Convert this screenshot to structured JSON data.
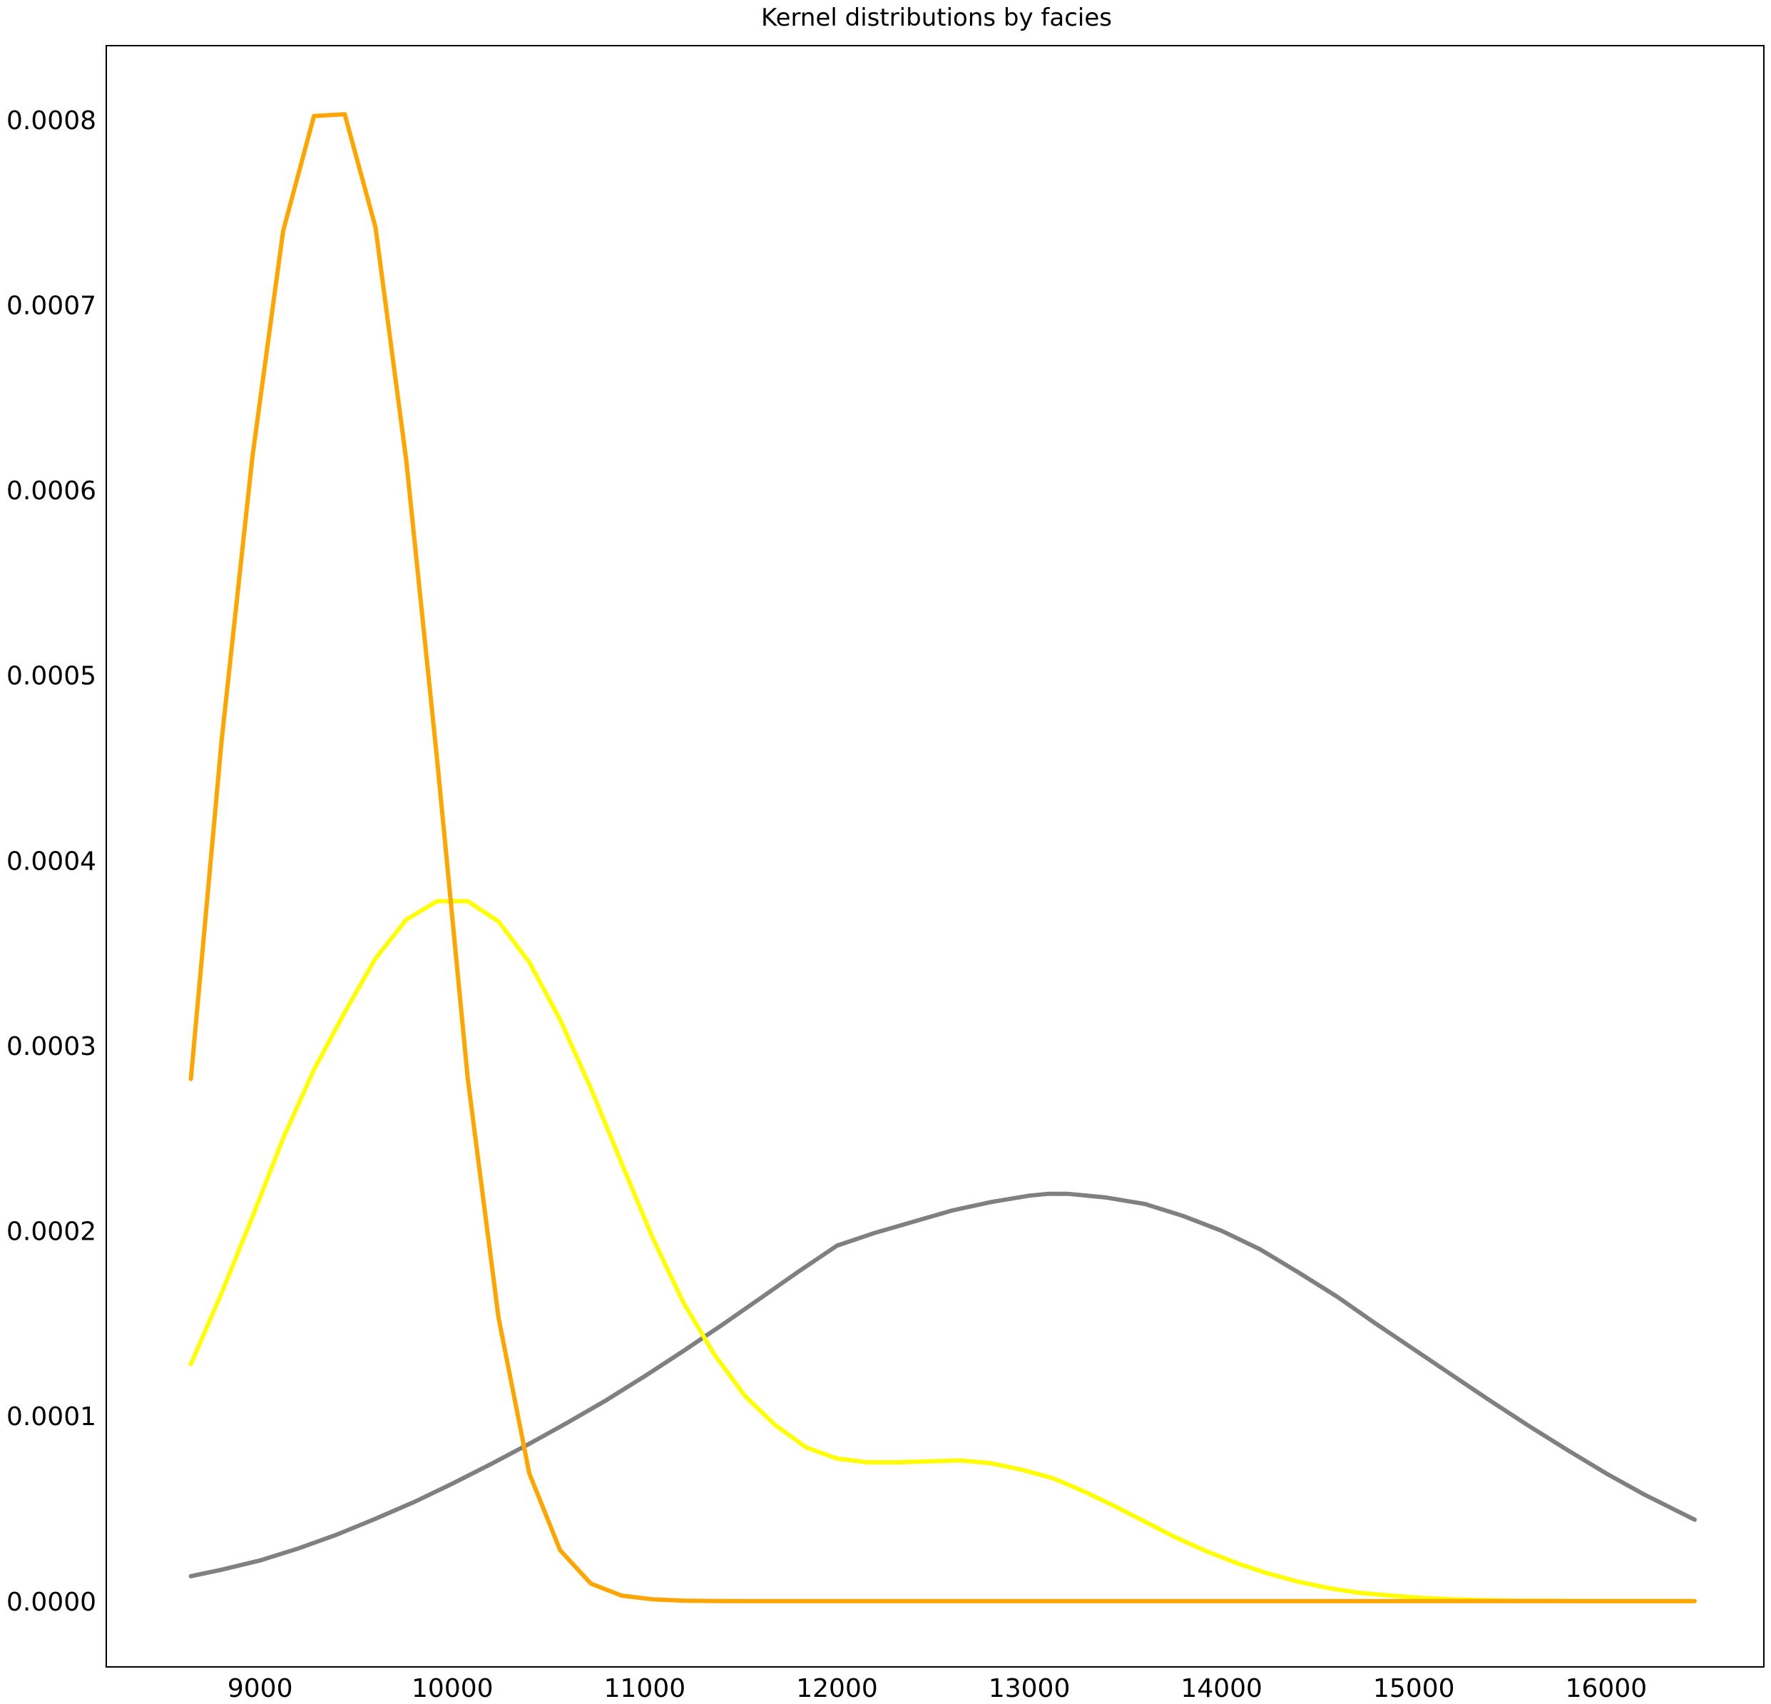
{
  "chart_data": {
    "type": "line",
    "title": "Kernel distributions by facies",
    "xlabel": "",
    "ylabel": "",
    "xlim": [
      8200,
      16820
    ],
    "ylim": [
      -3.55e-05,
      0.00084
    ],
    "grid": false,
    "legend": "none",
    "x_ticks": [
      9000,
      10000,
      11000,
      12000,
      13000,
      14000,
      15000,
      16000
    ],
    "x_tick_labels": [
      "9000",
      "10000",
      "11000",
      "12000",
      "13000",
      "14000",
      "15000",
      "16000"
    ],
    "y_ticks": [
      0.0,
      0.0001,
      0.0002,
      0.0003,
      0.0004,
      0.0005,
      0.0006,
      0.0007,
      0.0008
    ],
    "y_tick_labels": [
      "0.0000",
      "0.0001",
      "0.0002",
      "0.0003",
      "0.0004",
      "0.0005",
      "0.0006",
      "0.0007",
      "0.0008"
    ],
    "series": [
      {
        "color": "#808080",
        "x": [
          8640,
          8800,
          9000,
          9200,
          9400,
          9600,
          9800,
          10000,
          10200,
          10400,
          10600,
          10800,
          11000,
          11200,
          11400,
          11600,
          11800,
          12000,
          12200,
          12400,
          12600,
          12800,
          13000,
          13100,
          13200,
          13400,
          13600,
          13800,
          14000,
          14200,
          14400,
          14600,
          14800,
          15000,
          15200,
          15400,
          15600,
          15800,
          16000,
          16200,
          16460
        ],
        "y": [
          1.35e-05,
          1.7e-05,
          2.2e-05,
          2.85e-05,
          3.6e-05,
          4.45e-05,
          5.35e-05,
          6.35e-05,
          7.4e-05,
          8.5e-05,
          9.65e-05,
          0.0001085,
          0.0001215,
          0.000135,
          0.000149,
          0.0001635,
          0.000178,
          0.000192,
          0.000199,
          0.000205,
          0.000211,
          0.0002155,
          0.000219,
          0.00022,
          0.00022,
          0.000218,
          0.0002145,
          0.000208,
          0.0002,
          0.00019,
          0.0001775,
          0.0001645,
          0.00015,
          0.000136,
          0.000122,
          0.000108,
          9.45e-05,
          8.15e-05,
          6.9e-05,
          5.75e-05,
          4.4e-05
        ]
      },
      {
        "color": "#FFFF00",
        "x": [
          8640,
          8800,
          8960,
          9120,
          9280,
          9440,
          9600,
          9760,
          9920,
          10080,
          10240,
          10400,
          10560,
          10720,
          10880,
          11040,
          11200,
          11360,
          11520,
          11680,
          11840,
          12000,
          12160,
          12320,
          12480,
          12640,
          12800,
          12960,
          13120,
          13280,
          13440,
          13600,
          13760,
          13920,
          14080,
          14240,
          14400,
          14560,
          14720,
          14880,
          15040,
          15200,
          15360,
          15520,
          15680,
          15840,
          16000,
          16160,
          16320,
          16460
        ],
        "y": [
          0.000128,
          0.0001665,
          0.0002075,
          0.00025,
          0.000287,
          0.000318,
          0.000347,
          0.000368,
          0.000378,
          0.000378,
          0.000367,
          0.000345,
          0.000314,
          0.000277,
          0.0002365,
          0.0001965,
          0.0001615,
          0.0001335,
          0.000111,
          9.5e-05,
          8.3e-05,
          7.7e-05,
          7.5e-05,
          7.5e-05,
          7.55e-05,
          7.6e-05,
          7.45e-05,
          7.1e-05,
          6.65e-05,
          5.95e-05,
          5.15e-05,
          4.3e-05,
          3.45e-05,
          2.7e-05,
          2.05e-05,
          1.5e-05,
          1.05e-05,
          7e-06,
          4.5e-06,
          3e-06,
          1.8e-06,
          1e-06,
          6e-07,
          3e-07,
          2e-07,
          1e-07,
          1e-07,
          1e-07,
          1e-07,
          0.0
        ]
      },
      {
        "color": "#FFA500",
        "x": [
          8640,
          8800,
          8960,
          9120,
          9280,
          9440,
          9600,
          9760,
          9920,
          10080,
          10240,
          10400,
          10560,
          10720,
          10880,
          11040,
          11200,
          11360,
          11520,
          11680,
          11840,
          12000,
          13000,
          14000,
          15000,
          16000,
          16460
        ],
        "y": [
          0.000282,
          0.000465,
          0.000618,
          0.00074,
          0.000802,
          0.000803,
          0.000742,
          0.000616,
          0.000455,
          0.000282,
          0.000153,
          6.9e-05,
          2.75e-05,
          9.5e-06,
          3e-06,
          1e-06,
          3e-07,
          1e-07,
          0.0,
          0.0,
          0.0,
          0.0,
          0.0,
          0.0,
          0.0,
          0.0,
          0.0
        ]
      }
    ]
  }
}
